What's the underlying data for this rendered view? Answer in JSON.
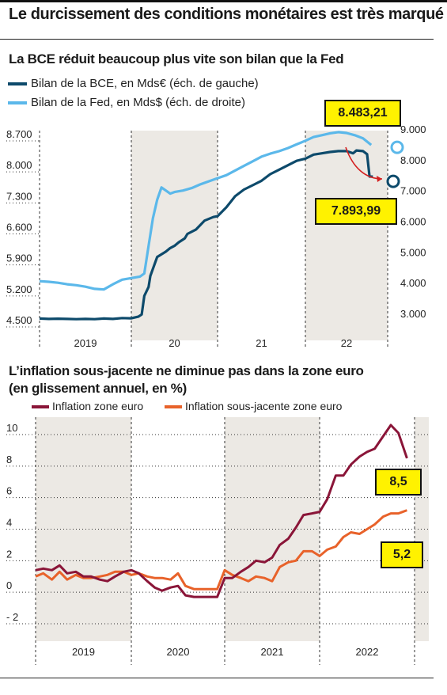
{
  "header": {
    "title": "Le durcissement des conditions monétaires est très marqué"
  },
  "chart_data": [
    {
      "type": "line",
      "title": "La BCE réduit beaucoup plus vite son bilan que la Fed",
      "categories": [
        "2019",
        "20",
        "21",
        "22"
      ],
      "y_left_ticks": [
        "8.700",
        "8.000",
        "7.300",
        "6.600",
        "5.900",
        "5.200",
        "4.500"
      ],
      "y_right_ticks": [
        "9.000",
        "8.000",
        "7.000",
        "6.000",
        "5.000",
        "4.000",
        "3.000"
      ],
      "ylim_left": [
        4300,
        8850
      ],
      "ylim_right": [
        2400,
        9000
      ],
      "shaded_years": [
        "20",
        "22"
      ],
      "x_range": [
        2019.0,
        2022.85
      ],
      "series": [
        {
          "name": "Bilan de la BCE, en Mds€ (éch. de gauche)",
          "color": "#0d4a6b",
          "axis": "left",
          "x": [
            2019.0,
            2019.1,
            2019.2,
            2019.3,
            2019.4,
            2019.5,
            2019.6,
            2019.7,
            2019.8,
            2019.9,
            2020.0,
            2020.08,
            2020.12,
            2020.15,
            2020.2,
            2020.22,
            2020.3,
            2020.4,
            2020.45,
            2020.5,
            2020.55,
            2020.62,
            2020.65,
            2020.75,
            2020.85,
            2020.95,
            2021.0,
            2021.1,
            2021.2,
            2021.3,
            2021.4,
            2021.5,
            2021.6,
            2021.7,
            2021.8,
            2021.9,
            2022.0,
            2022.1,
            2022.2,
            2022.3,
            2022.4,
            2022.5,
            2022.58,
            2022.62,
            2022.7,
            2022.75,
            2022.78,
            2022.82
          ],
          "values": [
            4690,
            4680,
            4685,
            4680,
            4675,
            4680,
            4675,
            4690,
            4680,
            4700,
            4695,
            4730,
            4780,
            5200,
            5400,
            5650,
            6080,
            6200,
            6280,
            6330,
            6410,
            6500,
            6600,
            6700,
            6900,
            6980,
            7000,
            7200,
            7450,
            7600,
            7700,
            7800,
            7950,
            8050,
            8150,
            8250,
            8300,
            8390,
            8420,
            8450,
            8470,
            8470,
            8420,
            8483,
            8470,
            8400,
            7895,
            7894
          ]
        },
        {
          "name": "Bilan de la Fed, en Mds$ (éch. de droite)",
          "color": "#5bb8ea",
          "axis": "right",
          "x": [
            2019.0,
            2019.1,
            2019.2,
            2019.3,
            2019.4,
            2019.5,
            2019.6,
            2019.7,
            2019.8,
            2019.9,
            2020.0,
            2020.1,
            2020.15,
            2020.2,
            2020.25,
            2020.3,
            2020.35,
            2020.4,
            2020.45,
            2020.5,
            2020.6,
            2020.7,
            2020.8,
            2020.9,
            2021.0,
            2021.1,
            2021.2,
            2021.3,
            2021.4,
            2021.5,
            2021.6,
            2021.7,
            2021.8,
            2021.9,
            2022.0,
            2022.1,
            2022.2,
            2022.3,
            2022.4,
            2022.5,
            2022.6,
            2022.7,
            2022.8
          ],
          "values": [
            4050,
            4030,
            4000,
            3950,
            3920,
            3870,
            3800,
            3780,
            3950,
            4100,
            4150,
            4200,
            4300,
            5200,
            6100,
            6700,
            7100,
            7000,
            6900,
            6950,
            7000,
            7080,
            7200,
            7300,
            7400,
            7500,
            7650,
            7800,
            7950,
            8100,
            8200,
            8280,
            8380,
            8500,
            8620,
            8740,
            8800,
            8860,
            8900,
            8870,
            8800,
            8700,
            8483
          ]
        }
      ],
      "annotations": [
        "8.483,21",
        "7.893,99"
      ]
    },
    {
      "type": "line",
      "title": "L’inflation sous-jacente ne diminue pas dans la zone euro (en glissement annuel, en %)",
      "categories": [
        "2019",
        "2020",
        "2021",
        "2022"
      ],
      "y_ticks": [
        "10",
        "8",
        "6",
        "4",
        "2",
        "0",
        "- 2"
      ],
      "ylim": [
        -3,
        11
      ],
      "shaded_years": [
        "2019",
        "2021"
      ],
      "x_range": [
        2019.0,
        2022.95
      ],
      "series": [
        {
          "name": "Inflation zone euro",
          "color": "#8a1538",
          "x": [
            2019.0,
            2019.08,
            2019.17,
            2019.25,
            2019.33,
            2019.42,
            2019.5,
            2019.58,
            2019.67,
            2019.75,
            2019.83,
            2019.92,
            2020.0,
            2020.08,
            2020.17,
            2020.25,
            2020.33,
            2020.42,
            2020.5,
            2020.58,
            2020.67,
            2020.75,
            2020.83,
            2020.92,
            2021.0,
            2021.08,
            2021.17,
            2021.25,
            2021.33,
            2021.42,
            2021.5,
            2021.58,
            2021.67,
            2021.75,
            2021.83,
            2021.92,
            2022.0,
            2022.08,
            2022.17,
            2022.25,
            2022.33,
            2022.42,
            2022.5,
            2022.58,
            2022.67,
            2022.75,
            2022.83,
            2022.92
          ],
          "values": [
            1.4,
            1.5,
            1.4,
            1.7,
            1.2,
            1.3,
            1.0,
            1.0,
            0.8,
            0.7,
            1.0,
            1.3,
            1.4,
            1.2,
            0.7,
            0.3,
            0.1,
            0.3,
            0.4,
            -0.2,
            -0.3,
            -0.3,
            -0.3,
            -0.3,
            0.9,
            0.9,
            1.3,
            1.6,
            2.0,
            1.9,
            2.2,
            3.0,
            3.4,
            4.1,
            4.9,
            5.0,
            5.1,
            5.9,
            7.4,
            7.4,
            8.1,
            8.6,
            8.9,
            9.1,
            9.9,
            10.6,
            10.1,
            8.5
          ]
        },
        {
          "name": "Inflation sous-jacente zone euro",
          "color": "#e8622a",
          "x": [
            2019.0,
            2019.08,
            2019.17,
            2019.25,
            2019.33,
            2019.42,
            2019.5,
            2019.58,
            2019.67,
            2019.75,
            2019.83,
            2019.92,
            2020.0,
            2020.08,
            2020.17,
            2020.25,
            2020.33,
            2020.42,
            2020.5,
            2020.58,
            2020.67,
            2020.75,
            2020.83,
            2020.92,
            2021.0,
            2021.08,
            2021.17,
            2021.25,
            2021.33,
            2021.42,
            2021.5,
            2021.58,
            2021.67,
            2021.75,
            2021.83,
            2021.92,
            2022.0,
            2022.08,
            2022.17,
            2022.25,
            2022.33,
            2022.42,
            2022.5,
            2022.58,
            2022.67,
            2022.75,
            2022.83,
            2022.92
          ],
          "values": [
            1.0,
            1.2,
            0.8,
            1.3,
            0.8,
            1.1,
            0.9,
            0.9,
            1.0,
            1.1,
            1.3,
            1.3,
            1.1,
            1.2,
            1.0,
            0.9,
            0.9,
            0.8,
            1.2,
            0.4,
            0.2,
            0.2,
            0.2,
            0.2,
            1.4,
            1.1,
            0.9,
            0.7,
            1.0,
            0.9,
            0.7,
            1.6,
            1.9,
            2.0,
            2.6,
            2.6,
            2.3,
            2.7,
            2.9,
            3.5,
            3.8,
            3.7,
            4.0,
            4.3,
            4.8,
            5.0,
            5.0,
            5.2
          ]
        }
      ],
      "annotations": [
        "8,5",
        "5,2"
      ]
    }
  ]
}
